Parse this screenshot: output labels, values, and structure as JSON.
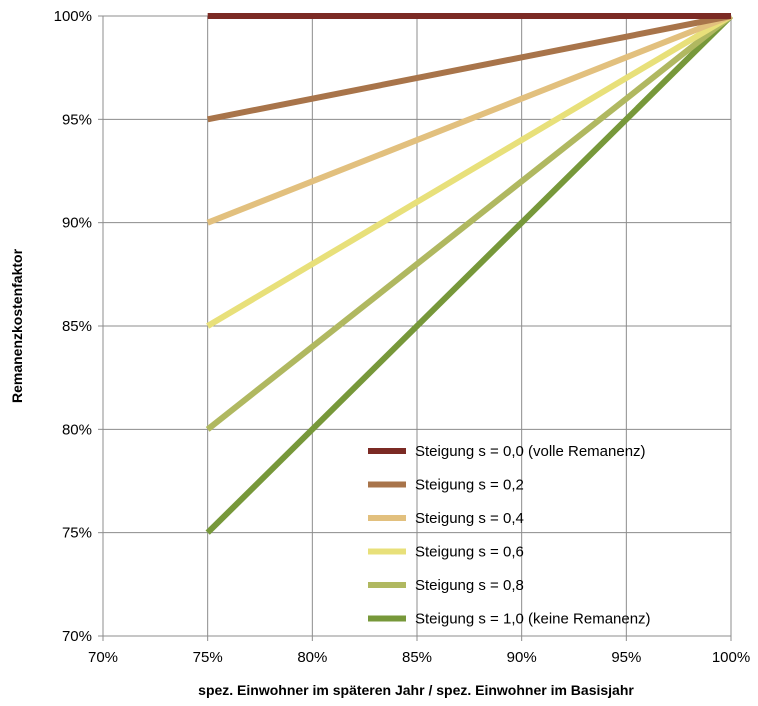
{
  "chart_data": {
    "type": "line",
    "xlabel": "spez. Einwohner im späteren Jahr / spez. Einwohner im Basisjahr",
    "ylabel": "Remanenzkostenfaktor",
    "x_ticks": [
      "70%",
      "75%",
      "80%",
      "85%",
      "90%",
      "95%",
      "100%"
    ],
    "y_ticks": [
      "70%",
      "75%",
      "80%",
      "85%",
      "90%",
      "95%",
      "100%"
    ],
    "xlim": [
      70,
      100
    ],
    "ylim": [
      70,
      100
    ],
    "grid": true,
    "legend_position": "bottom-right",
    "series": [
      {
        "name": "Steigung s = 0,0 (volle Remanenz)",
        "color": "#7b2a24",
        "x": [
          75,
          100
        ],
        "y": [
          100,
          100
        ]
      },
      {
        "name": "Steigung s = 0,2",
        "color": "#a8744a",
        "x": [
          75,
          100
        ],
        "y": [
          95,
          100
        ]
      },
      {
        "name": "Steigung s = 0,4",
        "color": "#e2c07e",
        "x": [
          75,
          100
        ],
        "y": [
          90,
          100
        ]
      },
      {
        "name": "Steigung s = 0,6",
        "color": "#e8e07a",
        "x": [
          75,
          100
        ],
        "y": [
          85,
          100
        ]
      },
      {
        "name": "Steigung s = 0,8",
        "color": "#b0b860",
        "x": [
          75,
          100
        ],
        "y": [
          80,
          100
        ]
      },
      {
        "name": "Steigung s = 1,0 (keine Remanenz)",
        "color": "#77983a",
        "x": [
          75,
          100
        ],
        "y": [
          75,
          100
        ]
      }
    ]
  }
}
